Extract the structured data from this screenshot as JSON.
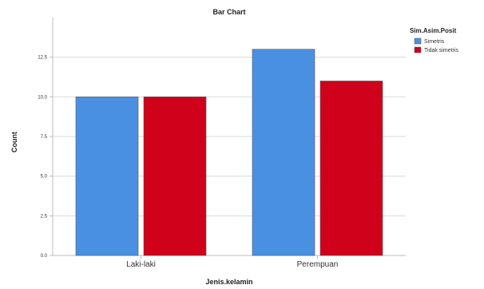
{
  "chart_data": {
    "type": "bar",
    "title": "Bar Chart",
    "xlabel": "Jenis.kelamin",
    "ylabel": "Count",
    "categories": [
      "Laki-laki",
      "Perempuan"
    ],
    "series": [
      {
        "name": "Simetris",
        "values": [
          10,
          13
        ],
        "color": "#4a90e2"
      },
      {
        "name": "Tidak simetris",
        "values": [
          10,
          11
        ],
        "color": "#d0021b"
      }
    ],
    "ylim": [
      0,
      15
    ],
    "yticks": [
      "0.0",
      "2.5",
      "5.0",
      "7.5",
      "10.0",
      "12.5"
    ],
    "legend_title": "Sim.Asim.Posit",
    "legend_position": "top-right",
    "grid": true
  }
}
